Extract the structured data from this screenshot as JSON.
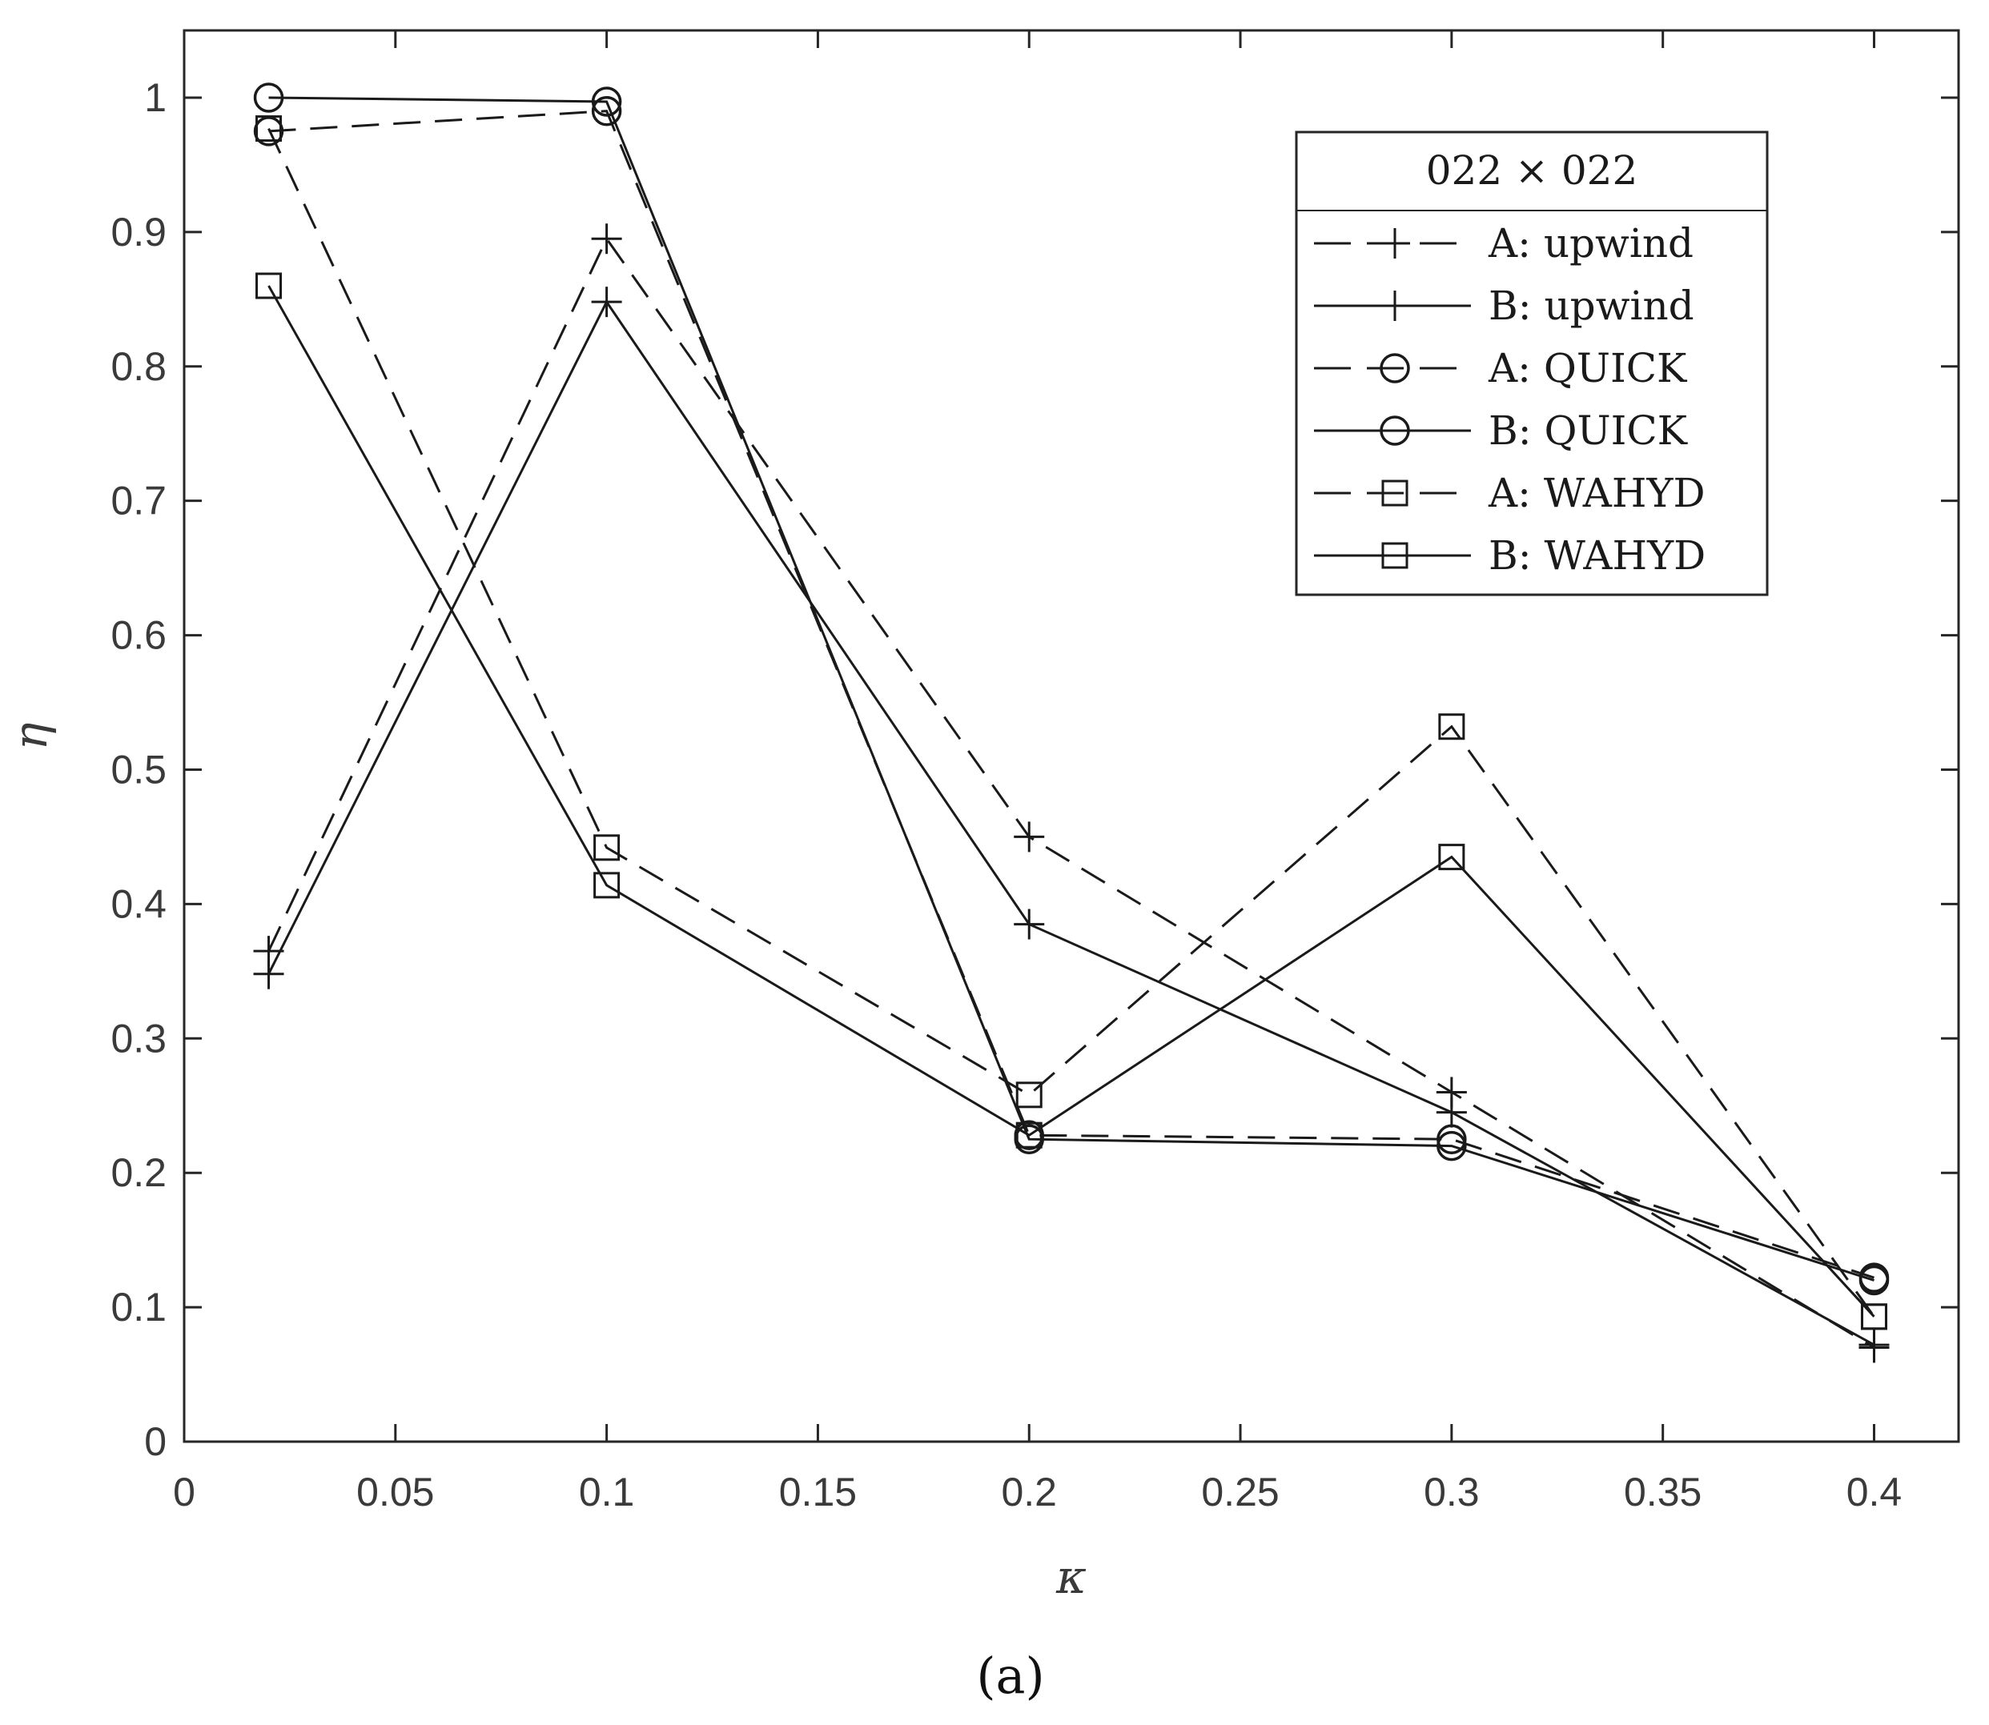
{
  "chart_data": {
    "type": "line",
    "xlabel": "κ",
    "ylabel": "η",
    "xlim": [
      0,
      0.42
    ],
    "ylim": [
      0,
      1.05
    ],
    "x_ticks": [
      {
        "v": 0,
        "label": "0"
      },
      {
        "v": 0.05,
        "label": "0.05"
      },
      {
        "v": 0.1,
        "label": "0.1"
      },
      {
        "v": 0.15,
        "label": "0.15"
      },
      {
        "v": 0.2,
        "label": "0.2"
      },
      {
        "v": 0.25,
        "label": "0.25"
      },
      {
        "v": 0.3,
        "label": "0.3"
      },
      {
        "v": 0.35,
        "label": "0.35"
      },
      {
        "v": 0.4,
        "label": "0.4"
      }
    ],
    "y_ticks": [
      {
        "v": 0,
        "label": "0"
      },
      {
        "v": 0.1,
        "label": "0.1"
      },
      {
        "v": 0.2,
        "label": "0.2"
      },
      {
        "v": 0.3,
        "label": "0.3"
      },
      {
        "v": 0.4,
        "label": "0.4"
      },
      {
        "v": 0.5,
        "label": "0.5"
      },
      {
        "v": 0.6,
        "label": "0.6"
      },
      {
        "v": 0.7,
        "label": "0.7"
      },
      {
        "v": 0.8,
        "label": "0.8"
      },
      {
        "v": 0.9,
        "label": "0.9"
      },
      {
        "v": 1,
        "label": "1"
      }
    ],
    "legend_title": "022 × 022",
    "legend_position": "top-right",
    "x": [
      0.02,
      0.1,
      0.2,
      0.3,
      0.4
    ],
    "series": [
      {
        "name": "A: upwind",
        "line": "dashed",
        "marker": "plus",
        "values": [
          0.365,
          0.895,
          0.45,
          0.26,
          0.07
        ]
      },
      {
        "name": "B: upwind",
        "line": "solid",
        "marker": "plus",
        "values": [
          0.348,
          0.848,
          0.385,
          0.245,
          0.072
        ]
      },
      {
        "name": "A: QUICK",
        "line": "dashed",
        "marker": "circle",
        "values": [
          0.975,
          0.99,
          0.228,
          0.225,
          0.122
        ]
      },
      {
        "name": "B: QUICK",
        "line": "solid",
        "marker": "circle",
        "values": [
          1.0,
          0.997,
          0.225,
          0.22,
          0.12
        ]
      },
      {
        "name": "A: WAHYD",
        "line": "dashed",
        "marker": "square",
        "values": [
          0.977,
          0.442,
          0.258,
          0.532,
          0.093
        ]
      },
      {
        "name": "B: WAHYD",
        "line": "solid",
        "marker": "square",
        "values": [
          0.86,
          0.414,
          0.228,
          0.435,
          0.093
        ]
      }
    ]
  },
  "caption": "(a)"
}
